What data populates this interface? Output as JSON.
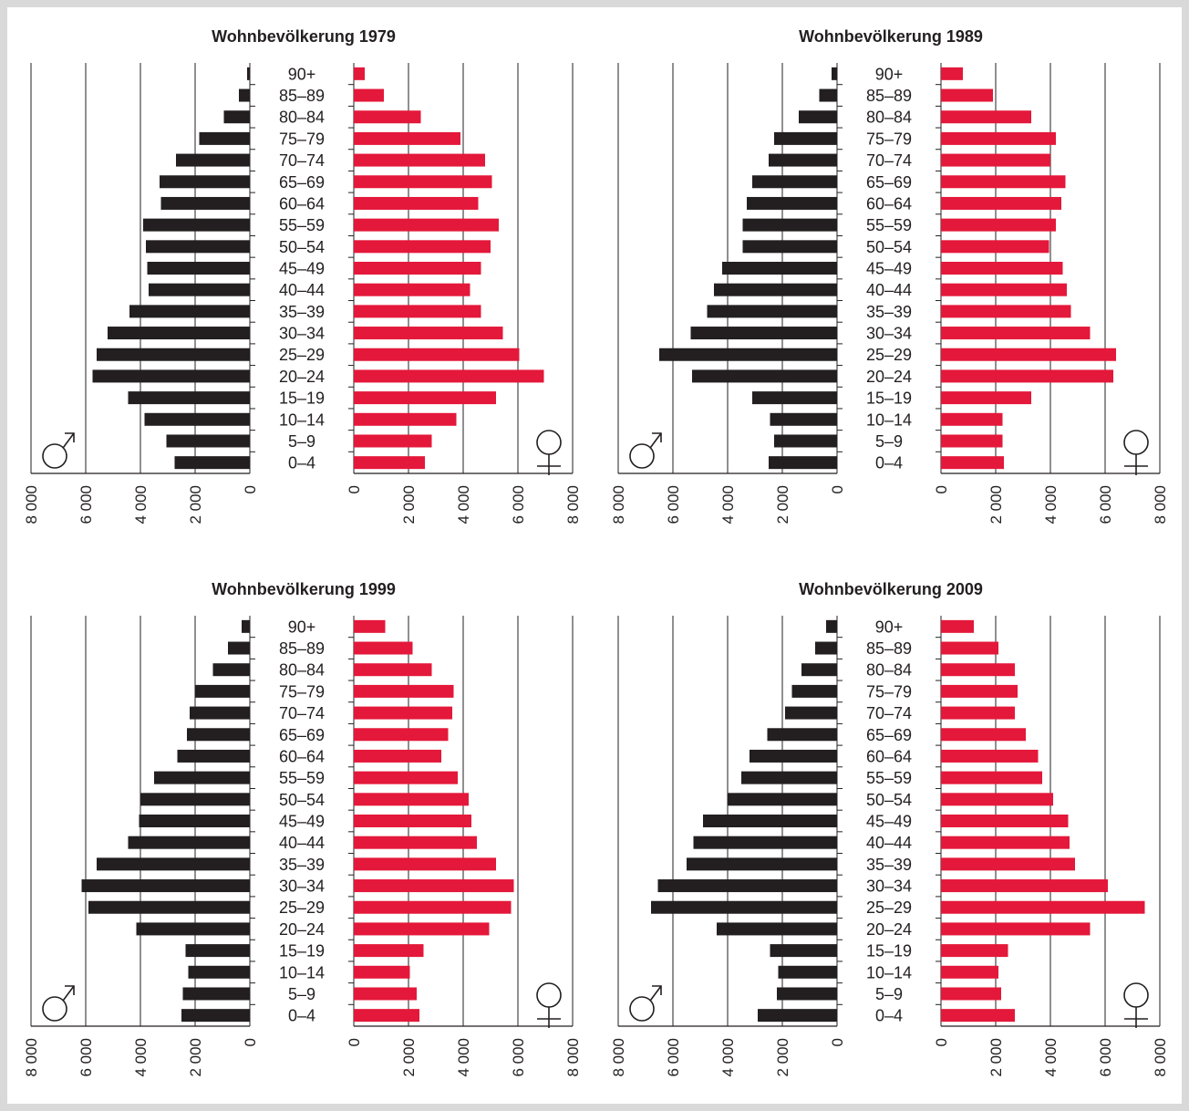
{
  "colors": {
    "male": "#231f20",
    "female": "#e4183a",
    "axis": "#231f20",
    "background_border": "#d9d9d9"
  },
  "icons": {
    "male": "male-symbol-icon",
    "female": "female-symbol-icon"
  },
  "chart_data": [
    {
      "type": "bar",
      "title": "Wohnbevölkerung 1979",
      "categories": [
        "90+",
        "85–89",
        "80–84",
        "75–79",
        "70–74",
        "65–69",
        "60–64",
        "55–59",
        "50–54",
        "45–49",
        "40–44",
        "35–39",
        "30–34",
        "25–29",
        "20–24",
        "15–19",
        "10–14",
        "5–9",
        "0–4"
      ],
      "series": [
        {
          "values": [
            100,
            400,
            950,
            1850,
            2700,
            3300,
            3250,
            3900,
            3800,
            3750,
            3700,
            4400,
            5200,
            5600,
            5750,
            4450,
            3850,
            3050,
            2750
          ]
        },
        {
          "values": [
            400,
            1100,
            2450,
            3900,
            4800,
            5050,
            4550,
            5300,
            5000,
            4650,
            4250,
            4650,
            5450,
            6050,
            6950,
            5200,
            3750,
            2850,
            2600
          ]
        }
      ],
      "xlim": [
        0,
        8000
      ],
      "ticks": [
        "0",
        "2 000",
        "4 000",
        "6 000",
        "8 000"
      ],
      "grid": true
    },
    {
      "type": "bar",
      "title": "Wohnbevölkerung 1989",
      "categories": [
        "90+",
        "85–89",
        "80–84",
        "75–79",
        "70–74",
        "65–69",
        "60–64",
        "55–59",
        "50–54",
        "45–49",
        "40–44",
        "35–39",
        "30–34",
        "25–29",
        "20–24",
        "15–19",
        "10–14",
        "5–9",
        "0–4"
      ],
      "series": [
        {
          "values": [
            200,
            650,
            1400,
            2300,
            2500,
            3100,
            3300,
            3450,
            3450,
            4200,
            4500,
            4750,
            5350,
            6500,
            5300,
            3100,
            2450,
            2300,
            2500
          ]
        },
        {
          "values": [
            800,
            1900,
            3300,
            4200,
            4000,
            4550,
            4400,
            4200,
            3950,
            4450,
            4600,
            4750,
            5450,
            6400,
            6300,
            3300,
            2250,
            2250,
            2300
          ]
        }
      ],
      "xlim": [
        0,
        8000
      ],
      "ticks": [
        "0",
        "2 000",
        "4 000",
        "6 000",
        "8 000"
      ],
      "grid": true
    },
    {
      "type": "bar",
      "title": "Wohnbevölkerung 1999",
      "categories": [
        "90+",
        "85–89",
        "80–84",
        "75–79",
        "70–74",
        "65–69",
        "60–64",
        "55–59",
        "50–54",
        "45–49",
        "40–44",
        "35–39",
        "30–34",
        "25–29",
        "20–24",
        "15–19",
        "10–14",
        "5–9",
        "0–4"
      ],
      "series": [
        {
          "values": [
            300,
            800,
            1350,
            2000,
            2200,
            2300,
            2650,
            3500,
            4000,
            4050,
            4450,
            5600,
            6150,
            5900,
            4150,
            2350,
            2250,
            2450,
            2500
          ]
        },
        {
          "values": [
            1150,
            2150,
            2850,
            3650,
            3600,
            3450,
            3200,
            3800,
            4200,
            4300,
            4500,
            5200,
            5850,
            5750,
            4950,
            2550,
            2050,
            2300,
            2400
          ]
        }
      ],
      "xlim": [
        0,
        8000
      ],
      "ticks": [
        "0",
        "2 000",
        "4 000",
        "6 000",
        "8 000"
      ],
      "grid": true
    },
    {
      "type": "bar",
      "title": "Wohnbevölkerung 2009",
      "categories": [
        "90+",
        "85–89",
        "80–84",
        "75–79",
        "70–74",
        "65–69",
        "60–64",
        "55–59",
        "50–54",
        "45–49",
        "40–44",
        "35–39",
        "30–34",
        "25–29",
        "20–24",
        "15–19",
        "10–14",
        "5–9",
        "0–4"
      ],
      "series": [
        {
          "values": [
            400,
            800,
            1300,
            1650,
            1900,
            2550,
            3200,
            3500,
            4000,
            4900,
            5250,
            5500,
            6550,
            6800,
            4400,
            2450,
            2150,
            2200,
            2900
          ]
        },
        {
          "values": [
            1200,
            2100,
            2700,
            2800,
            2700,
            3100,
            3550,
            3700,
            4100,
            4650,
            4700,
            4900,
            6100,
            7450,
            5450,
            2450,
            2100,
            2200,
            2700
          ]
        }
      ],
      "xlim": [
        0,
        8000
      ],
      "ticks": [
        "0",
        "2 000",
        "4 000",
        "6 000",
        "8 000"
      ],
      "grid": true
    }
  ]
}
